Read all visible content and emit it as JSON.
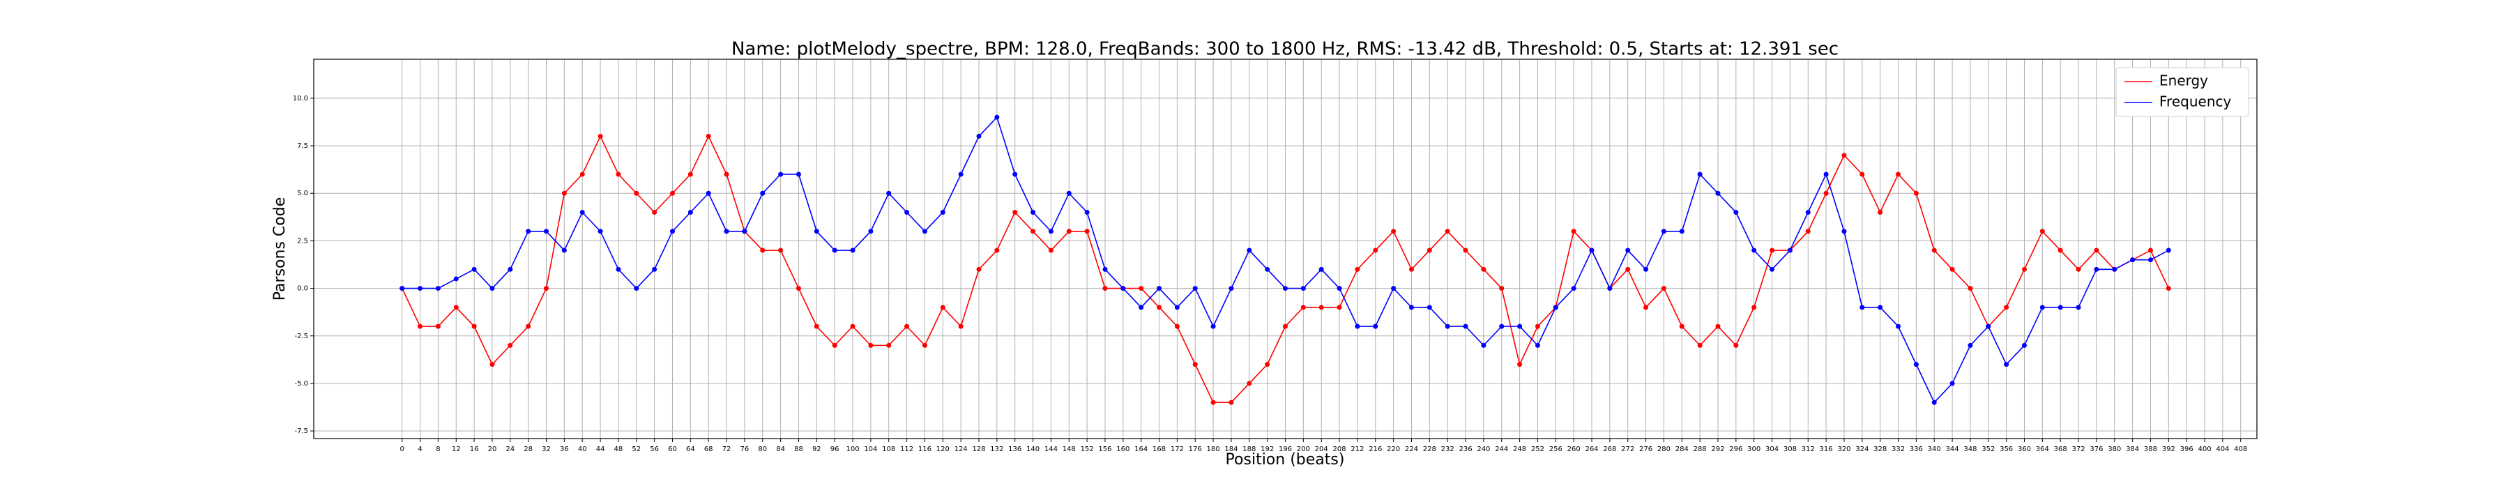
{
  "chart_data": {
    "type": "line",
    "title": "Name: plotMelody_spectre, BPM: 128.0, FreqBands: 300 to 1800 Hz, RMS: -13.42 dB, Threshold: 0.5, Starts at: 12.391 sec",
    "x_label": "Position (beats)",
    "y_label": "Parsons Code",
    "x": [
      0,
      4,
      8,
      12,
      16,
      20,
      24,
      28,
      32,
      36,
      40,
      44,
      48,
      52,
      56,
      60,
      64,
      68,
      72,
      76,
      80,
      84,
      88,
      92,
      96,
      100,
      104,
      108,
      112,
      116,
      120,
      124,
      128,
      132,
      136,
      140,
      144,
      148,
      152,
      156,
      160,
      164,
      168,
      172,
      176,
      180,
      184,
      188,
      192,
      196,
      200,
      204,
      208,
      212,
      216,
      220,
      224,
      228,
      232,
      236,
      240,
      244,
      248,
      252,
      256,
      260,
      264,
      268,
      272,
      276,
      280,
      284,
      288,
      292,
      296,
      300,
      304,
      308,
      312,
      316,
      320,
      324,
      328,
      332,
      336,
      340,
      344,
      348,
      352,
      356,
      360,
      364,
      368,
      372,
      376,
      380,
      384,
      388,
      392
    ],
    "series": [
      {
        "name": "Energy",
        "color": "#ff0000",
        "values": [
          0,
          -2,
          -2,
          -1,
          -2,
          -4,
          -3,
          -2,
          0,
          5,
          6,
          8,
          6,
          5,
          4,
          5,
          6,
          8,
          6,
          3,
          2,
          2,
          0,
          -2,
          -3,
          -2,
          -3,
          -3,
          -2,
          -3,
          -1,
          -2,
          1,
          2,
          4,
          3,
          2,
          3,
          3,
          0,
          0,
          0,
          -1,
          -2,
          -4,
          -6,
          -6,
          -5,
          -4,
          -2,
          -1,
          -1,
          -1,
          1,
          2,
          3,
          1,
          2,
          3,
          2,
          1,
          0,
          -4,
          -2,
          -1,
          3,
          2,
          0,
          1,
          -1,
          0,
          -2,
          -3,
          -2,
          -3,
          -1,
          2,
          2,
          3,
          5,
          7,
          6,
          4,
          6,
          5,
          2,
          1,
          0,
          -2,
          -1,
          1,
          3,
          2,
          1,
          2,
          1,
          1.5,
          2,
          0
        ]
      },
      {
        "name": "Frequency",
        "color": "#0000ff",
        "values": [
          0,
          0,
          0,
          0.5,
          1,
          0,
          1,
          3,
          3,
          2,
          4,
          3,
          1,
          0,
          1,
          3,
          4,
          5,
          3,
          3,
          5,
          6,
          6,
          3,
          2,
          2,
          3,
          5,
          4,
          3,
          4,
          6,
          8,
          9,
          6,
          4,
          3,
          5,
          4,
          1,
          0,
          -1,
          0,
          -1,
          0,
          -2,
          0,
          2,
          1,
          0,
          0,
          1,
          0,
          -2,
          -2,
          0,
          -1,
          -1,
          -2,
          -2,
          -3,
          -2,
          -2,
          -3,
          -1,
          0,
          2,
          0,
          2,
          1,
          3,
          3,
          6,
          5,
          4,
          2,
          1,
          2,
          4,
          6,
          3,
          -1,
          -1,
          -2,
          -4,
          -6,
          -5,
          -3,
          -2,
          -4,
          -3,
          -1,
          -1,
          -1,
          1,
          1,
          1.5,
          1.5,
          2
        ]
      }
    ],
    "xlim": [
      -19.6,
      411.6
    ],
    "xticks": [
      0,
      4,
      8,
      12,
      16,
      20,
      24,
      28,
      32,
      36,
      40,
      44,
      48,
      52,
      56,
      60,
      64,
      68,
      72,
      76,
      80,
      84,
      88,
      92,
      96,
      100,
      104,
      108,
      112,
      116,
      120,
      124,
      128,
      132,
      136,
      140,
      144,
      148,
      152,
      156,
      160,
      164,
      168,
      172,
      176,
      180,
      184,
      188,
      192,
      196,
      200,
      204,
      208,
      212,
      216,
      220,
      224,
      228,
      232,
      236,
      240,
      244,
      248,
      252,
      256,
      260,
      264,
      268,
      272,
      276,
      280,
      284,
      288,
      292,
      296,
      300,
      304,
      308,
      312,
      316,
      320,
      324,
      328,
      332,
      336,
      340,
      344,
      348,
      352,
      356,
      360,
      364,
      368,
      372,
      376,
      380,
      384,
      388,
      392,
      396,
      400,
      404,
      408
    ],
    "ylim": [
      -7.9,
      12.05
    ],
    "yticks": [
      -7.5,
      {
        "value": -5,
        "label": "-5.0"
      },
      -2.5,
      {
        "value": 0,
        "label": "0.0"
      },
      2.5,
      {
        "value": 5,
        "label": "5.0"
      },
      7.5,
      {
        "value": 10,
        "label": "10.0"
      }
    ],
    "grid": true,
    "legend": "upper right"
  }
}
